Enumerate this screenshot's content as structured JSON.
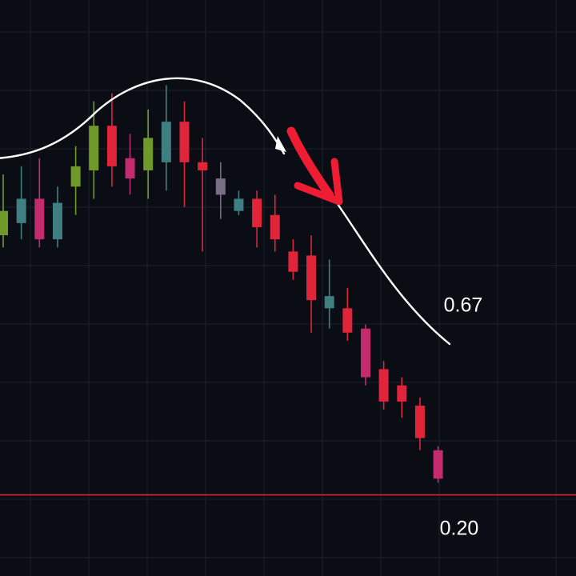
{
  "chart_data": {
    "type": "candlestick",
    "title": "",
    "xlabel": "",
    "ylabel": "",
    "ylim": [
      0.0,
      1.42
    ],
    "grid": true,
    "level_labels": [
      {
        "value": 0.67,
        "text": "0.67"
      },
      {
        "value": 0.2,
        "text": "0.20"
      }
    ],
    "support_line": {
      "value": 0.2,
      "color": "#e0202c"
    },
    "candles": [
      {
        "open": 0.9,
        "close": 0.84,
        "high": 0.99,
        "low": 0.81,
        "color": "#6f9a2a"
      },
      {
        "open": 0.93,
        "close": 0.87,
        "high": 1.01,
        "low": 0.83,
        "color": "#3f7f82"
      },
      {
        "open": 0.93,
        "close": 0.83,
        "high": 1.03,
        "low": 0.81,
        "color": "#c42a6e"
      },
      {
        "open": 0.92,
        "close": 0.83,
        "high": 0.96,
        "low": 0.81,
        "color": "#3f7f82"
      },
      {
        "open": 0.96,
        "close": 1.01,
        "high": 1.06,
        "low": 0.89,
        "color": "#6f9a2a"
      },
      {
        "open": 1.0,
        "close": 1.11,
        "high": 1.17,
        "low": 0.93,
        "color": "#6f9a2a"
      },
      {
        "open": 1.11,
        "close": 1.01,
        "high": 1.19,
        "low": 0.96,
        "color": "#e0243a"
      },
      {
        "open": 1.03,
        "close": 0.98,
        "high": 1.09,
        "low": 0.94,
        "color": "#c42a6e"
      },
      {
        "open": 1.0,
        "close": 1.08,
        "high": 1.15,
        "low": 0.93,
        "color": "#6f9a2a"
      },
      {
        "open": 1.02,
        "close": 1.12,
        "high": 1.21,
        "low": 0.95,
        "color": "#3f7f82"
      },
      {
        "open": 1.12,
        "close": 1.02,
        "high": 1.17,
        "low": 0.91,
        "color": "#e0243a"
      },
      {
        "open": 1.02,
        "close": 1.0,
        "high": 1.08,
        "low": 0.8,
        "color": "#e0243a"
      },
      {
        "open": 0.98,
        "close": 0.94,
        "high": 1.02,
        "low": 0.88,
        "color": "#7a6e86"
      },
      {
        "open": 0.93,
        "close": 0.9,
        "high": 0.95,
        "low": 0.89,
        "color": "#3f7f82"
      },
      {
        "open": 0.93,
        "close": 0.86,
        "high": 0.95,
        "low": 0.81,
        "color": "#e0243a"
      },
      {
        "open": 0.89,
        "close": 0.83,
        "high": 0.94,
        "low": 0.8,
        "color": "#e0243a"
      },
      {
        "open": 0.8,
        "close": 0.75,
        "high": 0.83,
        "low": 0.73,
        "color": "#e0243a"
      },
      {
        "open": 0.79,
        "close": 0.68,
        "high": 0.84,
        "low": 0.6,
        "color": "#e0243a"
      },
      {
        "open": 0.69,
        "close": 0.66,
        "high": 0.78,
        "low": 0.61,
        "color": "#3f7f82"
      },
      {
        "open": 0.66,
        "close": 0.6,
        "high": 0.71,
        "low": 0.58,
        "color": "#e0243a"
      },
      {
        "open": 0.61,
        "close": 0.49,
        "high": 0.62,
        "low": 0.47,
        "color": "#c42a6e"
      },
      {
        "open": 0.51,
        "close": 0.43,
        "high": 0.53,
        "low": 0.41,
        "color": "#e0243a"
      },
      {
        "open": 0.47,
        "close": 0.43,
        "high": 0.49,
        "low": 0.39,
        "color": "#e0243a"
      },
      {
        "open": 0.42,
        "close": 0.34,
        "high": 0.44,
        "low": 0.31,
        "color": "#e0243a"
      },
      {
        "open": 0.31,
        "close": 0.24,
        "high": 0.32,
        "low": 0.23,
        "color": "#c42a6e"
      }
    ]
  }
}
